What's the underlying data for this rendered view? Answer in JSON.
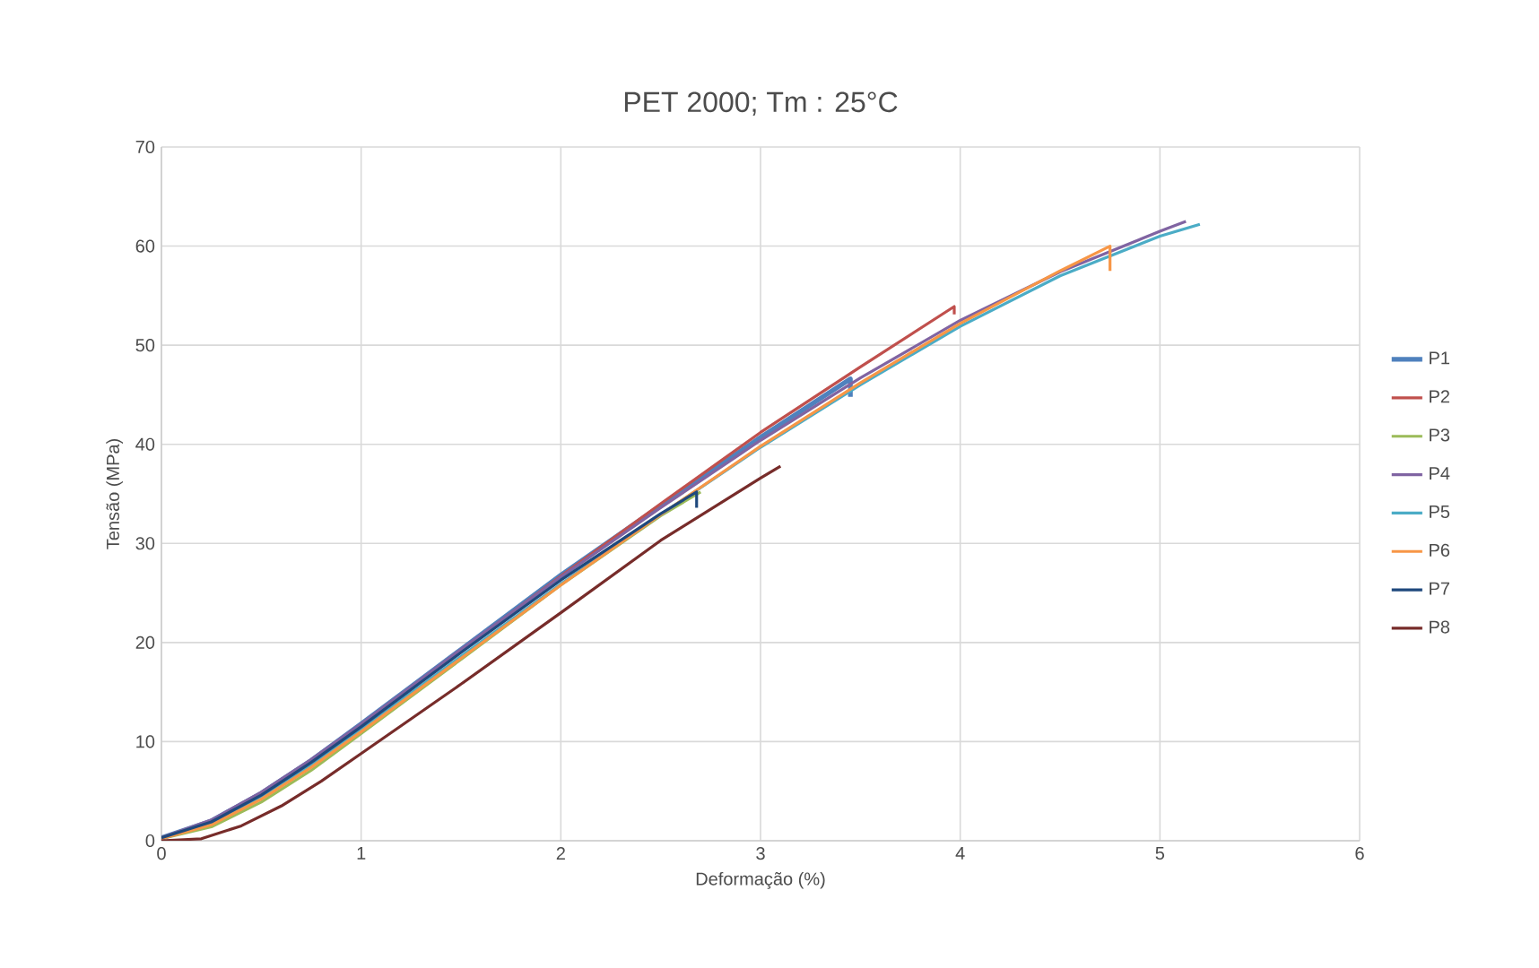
{
  "chart_data": {
    "type": "line",
    "title": "PET 2000; Tm : 25°C",
    "xlabel": "Deformação (%)",
    "ylabel": "Tensão (MPa)",
    "xlim": [
      0,
      6
    ],
    "ylim": [
      0,
      70
    ],
    "xticks": [
      0,
      1,
      2,
      3,
      4,
      5,
      6
    ],
    "yticks": [
      0,
      10,
      20,
      30,
      40,
      50,
      60,
      70
    ],
    "grid": true,
    "legend": "right",
    "marker": "none",
    "line_style": "solid",
    "series": [
      {
        "name": "P1",
        "color": "#4f81bd",
        "x": [
          0,
          0.25,
          0.5,
          0.75,
          1,
          1.5,
          2,
          2.5,
          3,
          3.45,
          3.45
        ],
        "values": [
          0.3,
          2,
          4.8,
          8.1,
          11.8,
          19.3,
          26.8,
          33.8,
          40.7,
          46.6,
          44.8
        ]
      },
      {
        "name": "P2",
        "color": "#c0504d",
        "x": [
          0,
          0.25,
          0.5,
          0.75,
          1,
          1.5,
          2,
          2.5,
          3,
          3.5,
          3.97,
          3.97
        ],
        "values": [
          0.3,
          2,
          4.7,
          8,
          11.7,
          19.2,
          26.7,
          34,
          41.2,
          47.8,
          53.9,
          53.1
        ]
      },
      {
        "name": "P3",
        "color": "#9bbb59",
        "x": [
          0,
          0.25,
          0.5,
          0.75,
          1,
          1.5,
          2,
          2.5,
          2.7
        ],
        "values": [
          0.2,
          1.4,
          3.9,
          7.1,
          10.8,
          18.3,
          25.8,
          32.8,
          35.2
        ]
      },
      {
        "name": "P4",
        "color": "#8064a2",
        "x": [
          0,
          0.25,
          0.5,
          0.75,
          1,
          1.5,
          2,
          2.5,
          3,
          3.5,
          4,
          4.5,
          5,
          5.13
        ],
        "values": [
          0.3,
          2.1,
          4.9,
          8.2,
          11.8,
          19.3,
          26.6,
          33.6,
          40.4,
          46.7,
          52.5,
          57.4,
          61.5,
          62.5
        ]
      },
      {
        "name": "P5",
        "color": "#4bacc6",
        "x": [
          0,
          0.25,
          0.5,
          0.75,
          1,
          1.5,
          2,
          2.5,
          3,
          3.5,
          4,
          4.5,
          5,
          5.2
        ],
        "values": [
          0.2,
          1.7,
          4.4,
          7.6,
          11.2,
          18.6,
          25.9,
          32.9,
          39.7,
          46,
          51.9,
          57,
          61,
          62.2
        ]
      },
      {
        "name": "P6",
        "color": "#f79646",
        "x": [
          0,
          0.25,
          0.5,
          0.75,
          1,
          1.5,
          2,
          2.5,
          3,
          3.5,
          4,
          4.5,
          4.75,
          4.75
        ],
        "values": [
          0.2,
          1.6,
          4.2,
          7.4,
          11,
          18.4,
          25.8,
          32.9,
          39.8,
          46.2,
          52.2,
          57.5,
          60,
          57.5
        ]
      },
      {
        "name": "P7",
        "color": "#1f497d",
        "x": [
          0,
          0.25,
          0.5,
          0.75,
          1,
          1.5,
          2,
          2.5,
          2.68,
          2.68
        ],
        "values": [
          0.3,
          1.9,
          4.6,
          7.9,
          11.5,
          19,
          26.3,
          33,
          35.2,
          33.6
        ]
      },
      {
        "name": "P8",
        "color": "#772c2a",
        "x": [
          0,
          0.2,
          0.4,
          0.6,
          0.8,
          1,
          1.5,
          2,
          2.5,
          3,
          3.1
        ],
        "values": [
          0,
          0.2,
          1.5,
          3.5,
          6,
          8.8,
          15.8,
          23,
          30.3,
          36.6,
          37.8
        ]
      }
    ]
  }
}
